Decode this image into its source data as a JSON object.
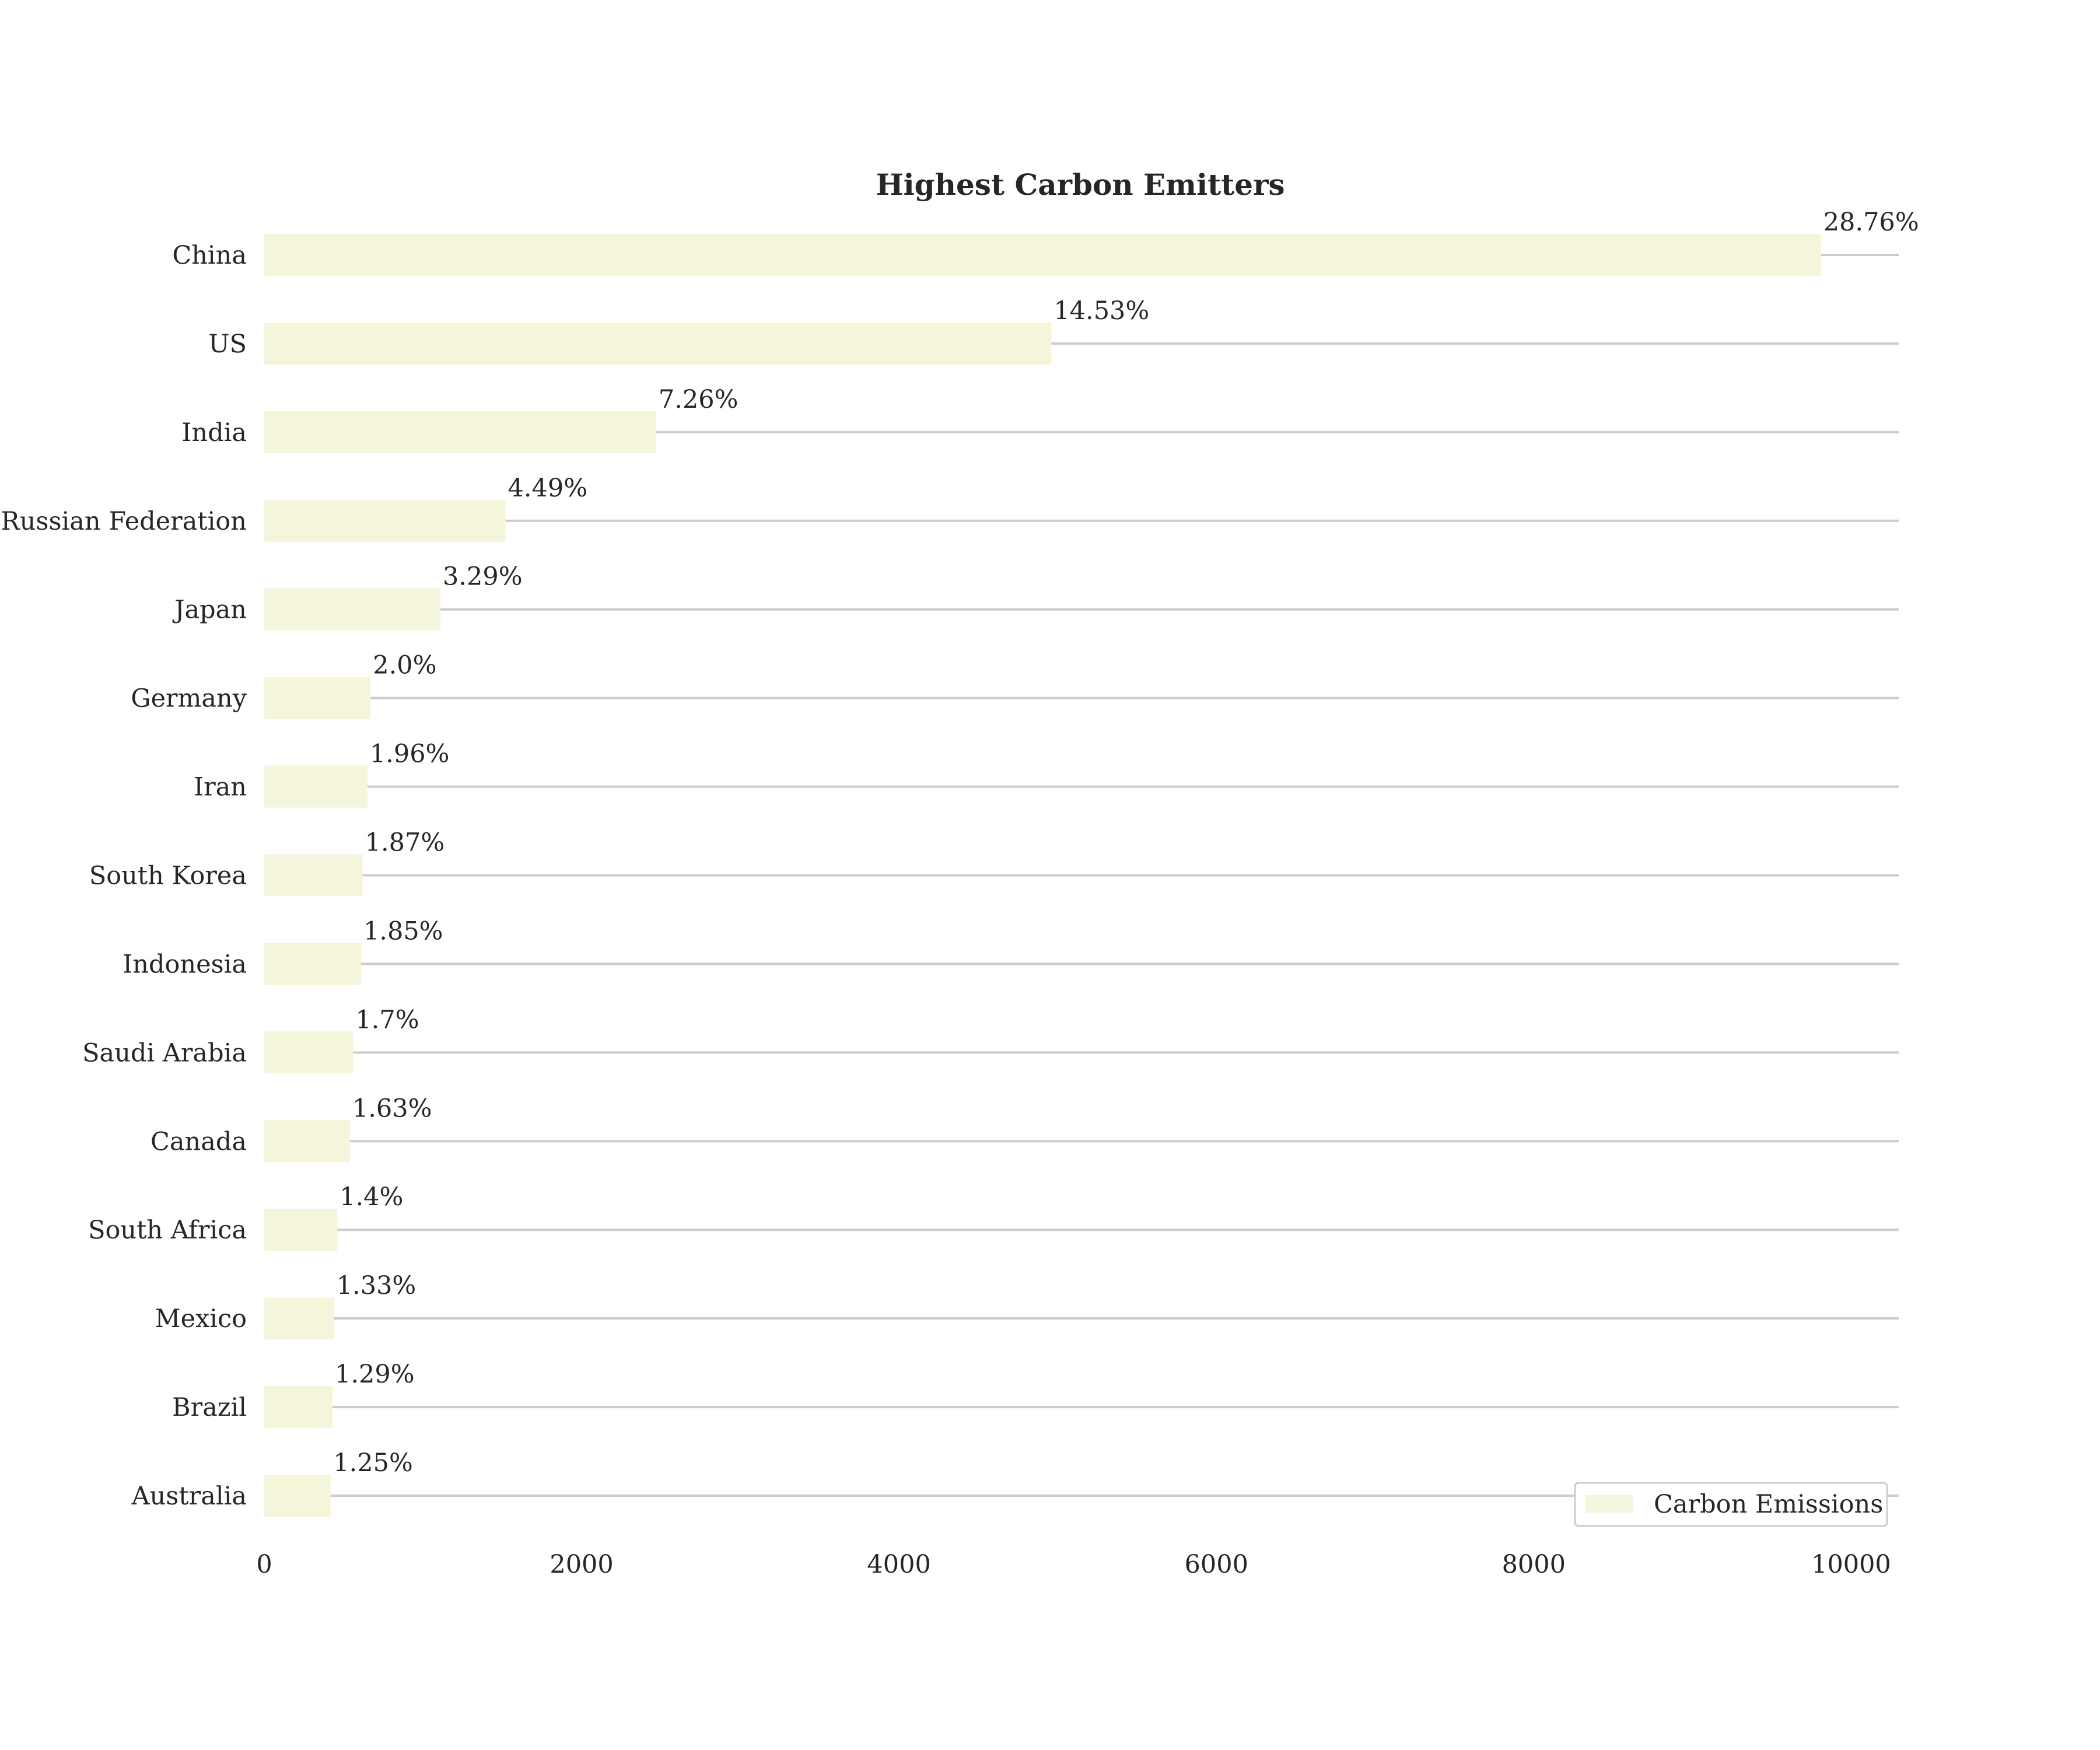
{
  "chart_data": {
    "type": "bar",
    "orientation": "horizontal",
    "title": "Highest Carbon Emitters",
    "xlabel": "",
    "ylabel": "",
    "categories": [
      "China",
      "US",
      "India",
      "Russian Federation",
      "Japan",
      "Germany",
      "Iran",
      "South Korea",
      "Indonesia",
      "Saudi Arabia",
      "Canada",
      "South Africa",
      "Mexico",
      "Brazil",
      "Australia"
    ],
    "series": [
      {
        "name": "Carbon Emissions",
        "color": "#f5f5dc",
        "values": [
          9810,
          4960,
          2470,
          1520,
          1110,
          670,
          650,
          620,
          610,
          560,
          540,
          460,
          440,
          430,
          420
        ],
        "data_labels": [
          "28.76%",
          "14.53%",
          "7.26%",
          "4.49%",
          "3.29%",
          "2.0%",
          "1.96%",
          "1.87%",
          "1.85%",
          "1.7%",
          "1.63%",
          "1.4%",
          "1.33%",
          "1.29%",
          "1.25%"
        ]
      }
    ],
    "xlim": [
      0,
      10300
    ],
    "xticks": [
      "0",
      "2000",
      "4000",
      "6000",
      "8000",
      "10000"
    ],
    "grid": false,
    "horizontal_guide_lines": true,
    "legend": {
      "position": "lower-right",
      "entries": [
        "Carbon Emissions"
      ]
    },
    "colors": {
      "guide_line": "#cccccc",
      "text": "#262626"
    }
  }
}
